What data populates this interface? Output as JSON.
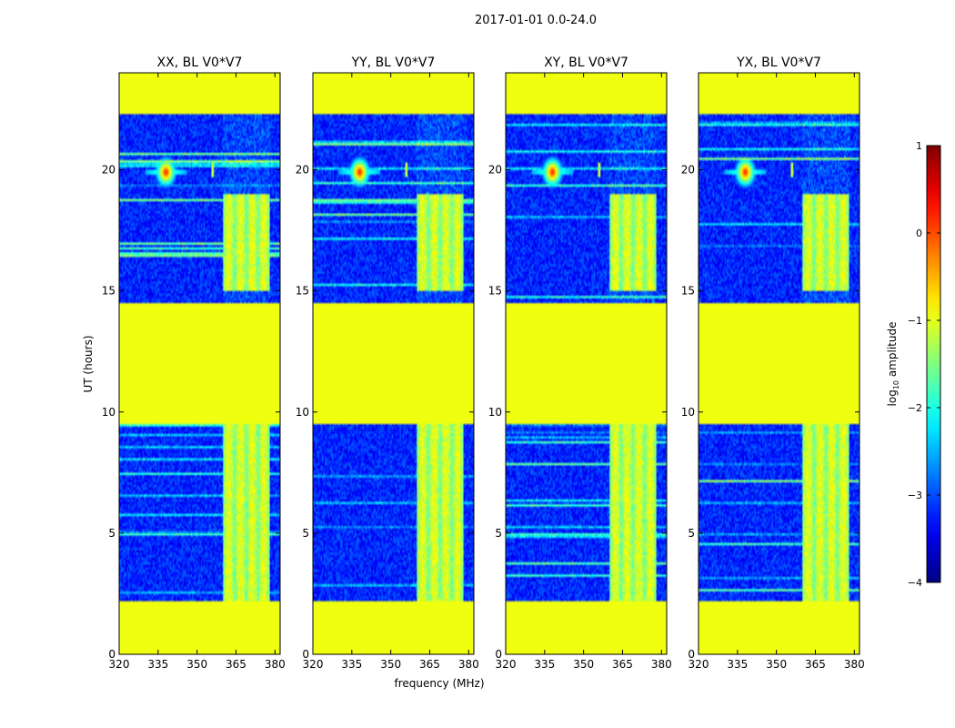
{
  "chart_data": {
    "type": "heatmap",
    "suptitle": "2017-01-01 0.0-24.0",
    "xlabel": "frequency (MHz)",
    "ylabel": "UT (hours)",
    "xlim": [
      320,
      382
    ],
    "ylim": [
      0,
      24
    ],
    "xticks": [
      320,
      335,
      350,
      365,
      380
    ],
    "yticks": [
      0,
      5,
      10,
      15,
      20
    ],
    "panels": [
      {
        "title": "XX, BL V0*V7"
      },
      {
        "title": "YY, BL V0*V7"
      },
      {
        "title": "XY, BL V0*V7"
      },
      {
        "title": "YX, BL V0*V7"
      }
    ],
    "colorbar": {
      "label_prefix": "log",
      "label_sub": "10",
      "label_suffix": " amplitude",
      "range": [
        -4,
        1
      ],
      "ticks": [
        "1",
        "0",
        "−1",
        "−2",
        "−3",
        "−4"
      ],
      "colormap": "jet"
    },
    "features": {
      "flagged_value_log": -0.95,
      "flagged_time_ranges": [
        [
          0.0,
          2.2
        ],
        [
          9.5,
          14.5
        ],
        [
          22.3,
          24.0
        ]
      ],
      "noise_floor_log": -3.2,
      "rfi_band_mhz": [
        360,
        378
      ],
      "bright_source": {
        "freq_mhz": 338,
        "ut_hours": 19.9,
        "log_amp": 0.4
      },
      "narrow_spike": {
        "freq_mhz": 356,
        "ut_hours": 20.0
      }
    }
  }
}
